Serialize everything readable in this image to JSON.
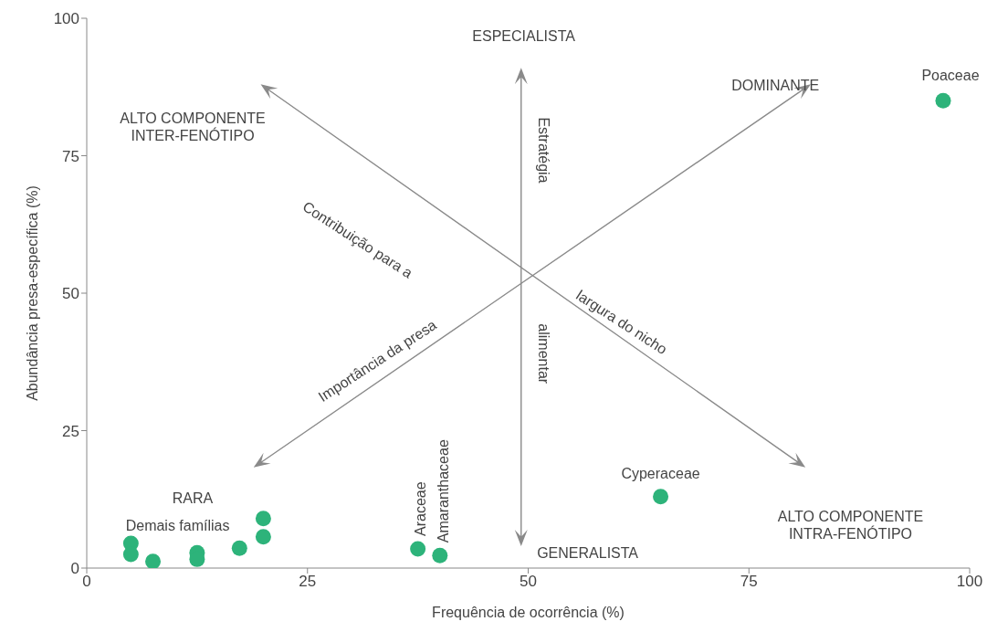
{
  "chart_data": {
    "type": "scatter",
    "xlabel": "Frequência de ocorrência (%)",
    "ylabel": "Abundância presa-específica (%)",
    "x": [
      5,
      5,
      7.5,
      12.5,
      12.5,
      17.3,
      20,
      20,
      37.5,
      40,
      65,
      97
    ],
    "series": [
      {
        "color": "#2db37a",
        "values": [
          4.5,
          2.5,
          1.2,
          2.8,
          1.6,
          3.6,
          9,
          5.7,
          3.5,
          2.3,
          13,
          85
        ]
      }
    ],
    "marker": "circle",
    "grid": false,
    "legend": false,
    "xlim": [
      0,
      100
    ],
    "xticks": [
      0,
      25,
      50,
      75,
      100
    ],
    "ylim": [
      0,
      100
    ],
    "yticks": [
      0,
      25,
      50,
      75,
      100
    ],
    "annotations": [
      "ESPECIALISTA",
      "DOMINANTE",
      "ALTO COMPONENTE\nINTER-FENÓTIPO",
      "ALTO COMPONENTE\nINTRA-FENÓTIPO",
      "GENERALISTA",
      "RARA",
      "Demais famílias",
      "Contribuição para a",
      "largura do nicho",
      "Estratégia",
      "alimentar",
      "Importância da presa",
      {
        "text": "Poaceae",
        "x": 97,
        "y": 85
      },
      {
        "text": "Cyperaceae",
        "x": 65,
        "y": 13
      },
      {
        "text": "Araceae",
        "x": 37.5,
        "y": 3.5
      },
      {
        "text": "Amaranthaceae",
        "x": 40,
        "y": 2.3
      }
    ]
  }
}
